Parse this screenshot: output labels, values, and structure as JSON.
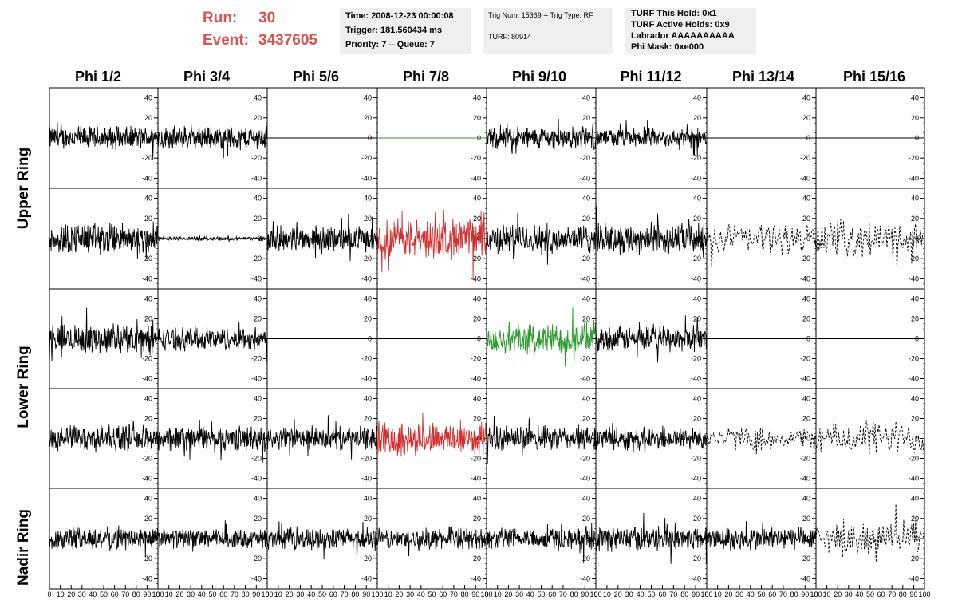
{
  "header": {
    "run_label": "Run:",
    "run_value": "30",
    "event_label": "Event:",
    "event_value": "3437605",
    "header_color": "#d9534f"
  },
  "info_time": {
    "time": "Time: 2008-12-23 00:00:08",
    "trigger": "Trigger: 181.560434 ms",
    "priority": "Priority: 7 -- Queue: 7"
  },
  "info_trig": {
    "trig": "Trig Num: 15369 -- Trig Type: RF",
    "turf": "TURF: 80914"
  },
  "info_turf": {
    "this_hold": "TURF This Hold: 0x1",
    "active_holds": "TURF Active Holds: 0x9",
    "labrador": "Labrador AAAAAAAAAA",
    "phi_mask": "Phi Mask: 0xe000"
  },
  "columns": [
    "Phi 1/2",
    "Phi 3/4",
    "Phi 5/6",
    "Phi 7/8",
    "Phi 9/10",
    "Phi 11/12",
    "Phi 13/14",
    "Phi 15/16"
  ],
  "row_labels": [
    "Upper Ring",
    "Lower Ring",
    "Nadir Ring"
  ],
  "chart_data": {
    "type": "line",
    "grid_rows": 5,
    "grid_cols": 8,
    "xlim": [
      0,
      100
    ],
    "ylim": [
      -50,
      50
    ],
    "y_ticks": [
      "40",
      "20",
      "0",
      "-20",
      "-40"
    ],
    "x_ticks": [
      "0",
      "10",
      "20",
      "30",
      "40",
      "50",
      "60",
      "70",
      "80",
      "90",
      "100"
    ],
    "panels": [
      [
        {
          "style": "solid",
          "color": "#000000",
          "amp": 11
        },
        {
          "style": "solid",
          "color": "#000000",
          "amp": 11
        },
        {
          "style": "flat",
          "color": "#000000",
          "amp": 0
        },
        {
          "style": "flat",
          "color": "#2e9b2e",
          "amp": 0
        },
        {
          "style": "solid",
          "color": "#000000",
          "amp": 11
        },
        {
          "style": "solid",
          "color": "#000000",
          "amp": 9
        },
        {
          "style": "flat",
          "color": "#000000",
          "amp": 0
        },
        {
          "style": "flat",
          "color": "#000000",
          "amp": 0
        }
      ],
      [
        {
          "style": "solid",
          "color": "#000000",
          "amp": 15
        },
        {
          "style": "solid",
          "color": "#000000",
          "amp": 2
        },
        {
          "style": "solid",
          "color": "#000000",
          "amp": 12
        },
        {
          "style": "solid",
          "color": "#d03030",
          "amp": 19
        },
        {
          "style": "solid",
          "color": "#000000",
          "amp": 14
        },
        {
          "style": "solid",
          "color": "#000000",
          "amp": 15
        },
        {
          "style": "dashed",
          "color": "#000000",
          "amp": 15
        },
        {
          "style": "dashed",
          "color": "#000000",
          "amp": 17
        }
      ],
      [
        {
          "style": "solid",
          "color": "#000000",
          "amp": 14
        },
        {
          "style": "solid",
          "color": "#000000",
          "amp": 11
        },
        {
          "style": "flat",
          "color": "#000000",
          "amp": 0
        },
        {
          "style": "flat",
          "color": "#000000",
          "amp": 0
        },
        {
          "style": "solid",
          "color": "#2e9b2e",
          "amp": 15
        },
        {
          "style": "solid",
          "color": "#000000",
          "amp": 12
        },
        {
          "style": "flat",
          "color": "#000000",
          "amp": 0
        },
        {
          "style": "flat",
          "color": "#000000",
          "amp": 0
        }
      ],
      [
        {
          "style": "solid",
          "color": "#000000",
          "amp": 12
        },
        {
          "style": "solid",
          "color": "#000000",
          "amp": 12
        },
        {
          "style": "solid",
          "color": "#000000",
          "amp": 11
        },
        {
          "style": "solid",
          "color": "#d03030",
          "amp": 17
        },
        {
          "style": "solid",
          "color": "#000000",
          "amp": 12
        },
        {
          "style": "solid",
          "color": "#000000",
          "amp": 11
        },
        {
          "style": "dashed",
          "color": "#000000",
          "amp": 11
        },
        {
          "style": "dashed",
          "color": "#000000",
          "amp": 17
        }
      ],
      [
        {
          "style": "solid",
          "color": "#000000",
          "amp": 11
        },
        {
          "style": "solid",
          "color": "#000000",
          "amp": 9
        },
        {
          "style": "solid",
          "color": "#000000",
          "amp": 10
        },
        {
          "style": "solid",
          "color": "#000000",
          "amp": 10
        },
        {
          "style": "solid",
          "color": "#000000",
          "amp": 10
        },
        {
          "style": "solid",
          "color": "#000000",
          "amp": 12
        },
        {
          "style": "solid",
          "color": "#000000",
          "amp": 11
        },
        {
          "style": "dashed",
          "color": "#000000",
          "amp": 16
        }
      ]
    ]
  }
}
